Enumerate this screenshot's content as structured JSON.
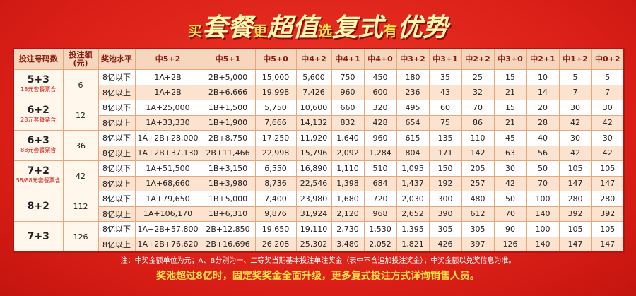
{
  "header": {
    "title_parts": [
      "买",
      "套餐",
      "更",
      "超值",
      "选",
      "复式",
      "有",
      "优势"
    ]
  },
  "table": {
    "columns": [
      "投注号码数",
      "投注额(元)",
      "奖池水平",
      "中5+2",
      "中5+1",
      "中5+0",
      "中4+2",
      "中4+1",
      "中4+0",
      "中3+2",
      "中3+1",
      "中2+2",
      "中3+0",
      "中2+1",
      "中1+2",
      "中0+2"
    ],
    "groups": [
      {
        "bet": "5+3",
        "note": "18元套餐票含",
        "amount": "6",
        "rows": [
          [
            "8亿以下",
            "1A+2B",
            "2B+5,000",
            "15,000",
            "5,600",
            "750",
            "450",
            "180",
            "35",
            "25",
            "15",
            "10",
            "5",
            "5"
          ],
          [
            "8亿以上",
            "1A+2B",
            "2B+6,666",
            "19,998",
            "7,426",
            "960",
            "600",
            "236",
            "43",
            "32",
            "21",
            "14",
            "7",
            "7"
          ]
        ]
      },
      {
        "bet": "6+2",
        "note": "28元套餐票含",
        "amount": "12",
        "rows": [
          [
            "8亿以下",
            "1A+25,000",
            "1B+1,500",
            "5,750",
            "10,600",
            "660",
            "320",
            "495",
            "60",
            "70",
            "15",
            "20",
            "30",
            "30"
          ],
          [
            "8亿以上",
            "1A+33,330",
            "1B+1,900",
            "7,666",
            "14,132",
            "832",
            "428",
            "654",
            "75",
            "86",
            "21",
            "28",
            "42",
            "42"
          ]
        ]
      },
      {
        "bet": "6+3",
        "note": "88元套餐票含",
        "amount": "36",
        "rows": [
          [
            "8亿以下",
            "1A+2B+28,000",
            "2B+8,750",
            "17,250",
            "11,920",
            "1,640",
            "960",
            "615",
            "135",
            "110",
            "45",
            "40",
            "30",
            "30"
          ],
          [
            "8亿以上",
            "1A+2B+37,130",
            "2B+11,466",
            "22,998",
            "15,796",
            "2,092",
            "1,284",
            "804",
            "171",
            "142",
            "63",
            "56",
            "42",
            "42"
          ]
        ]
      },
      {
        "bet": "7+2",
        "note": "58/88元套餐票含",
        "amount": "42",
        "rows": [
          [
            "8亿以下",
            "1A+51,500",
            "1B+3,150",
            "6,550",
            "16,890",
            "1,110",
            "510",
            "1,095",
            "150",
            "205",
            "30",
            "50",
            "105",
            "105"
          ],
          [
            "8亿以上",
            "1A+68,660",
            "1B+3,980",
            "8,736",
            "22,546",
            "1,398",
            "684",
            "1,437",
            "192",
            "257",
            "42",
            "70",
            "147",
            "147"
          ]
        ]
      },
      {
        "bet": "8+2",
        "note": null,
        "amount": "112",
        "rows": [
          [
            "8亿以下",
            "1A+79,650",
            "1B+5,000",
            "7,400",
            "23,980",
            "1,680",
            "720",
            "2,030",
            "300",
            "480",
            "50",
            "100",
            "280",
            "280"
          ],
          [
            "8亿以上",
            "1A+106,170",
            "1B+6,310",
            "9,876",
            "31,924",
            "2,120",
            "968",
            "2,652",
            "390",
            "612",
            "70",
            "140",
            "392",
            "392"
          ]
        ]
      },
      {
        "bet": "7+3",
        "note": null,
        "amount": "126",
        "rows": [
          [
            "8亿以下",
            "1A+2B+57,800",
            "2B+12,850",
            "19,650",
            "19,110",
            "2,730",
            "1,530",
            "1,395",
            "305",
            "305",
            "90",
            "100",
            "105",
            "105"
          ],
          [
            "8亿以上",
            "1A+2B+76,620",
            "2B+16,696",
            "26,208",
            "25,302",
            "3,480",
            "2,052",
            "1,821",
            "426",
            "397",
            "126",
            "140",
            "147",
            "147"
          ]
        ]
      }
    ]
  },
  "footer": {
    "note": "注：中奖金额单位为元；A、B分别为一、二等奖当期基本投注单注奖金（表中不含追加投注奖金）；中奖金额以兑奖信息为准。",
    "highlight": "奖池超过8亿时，固定奖奖金全面升级，更多复式投注方式详询销售人员。"
  }
}
